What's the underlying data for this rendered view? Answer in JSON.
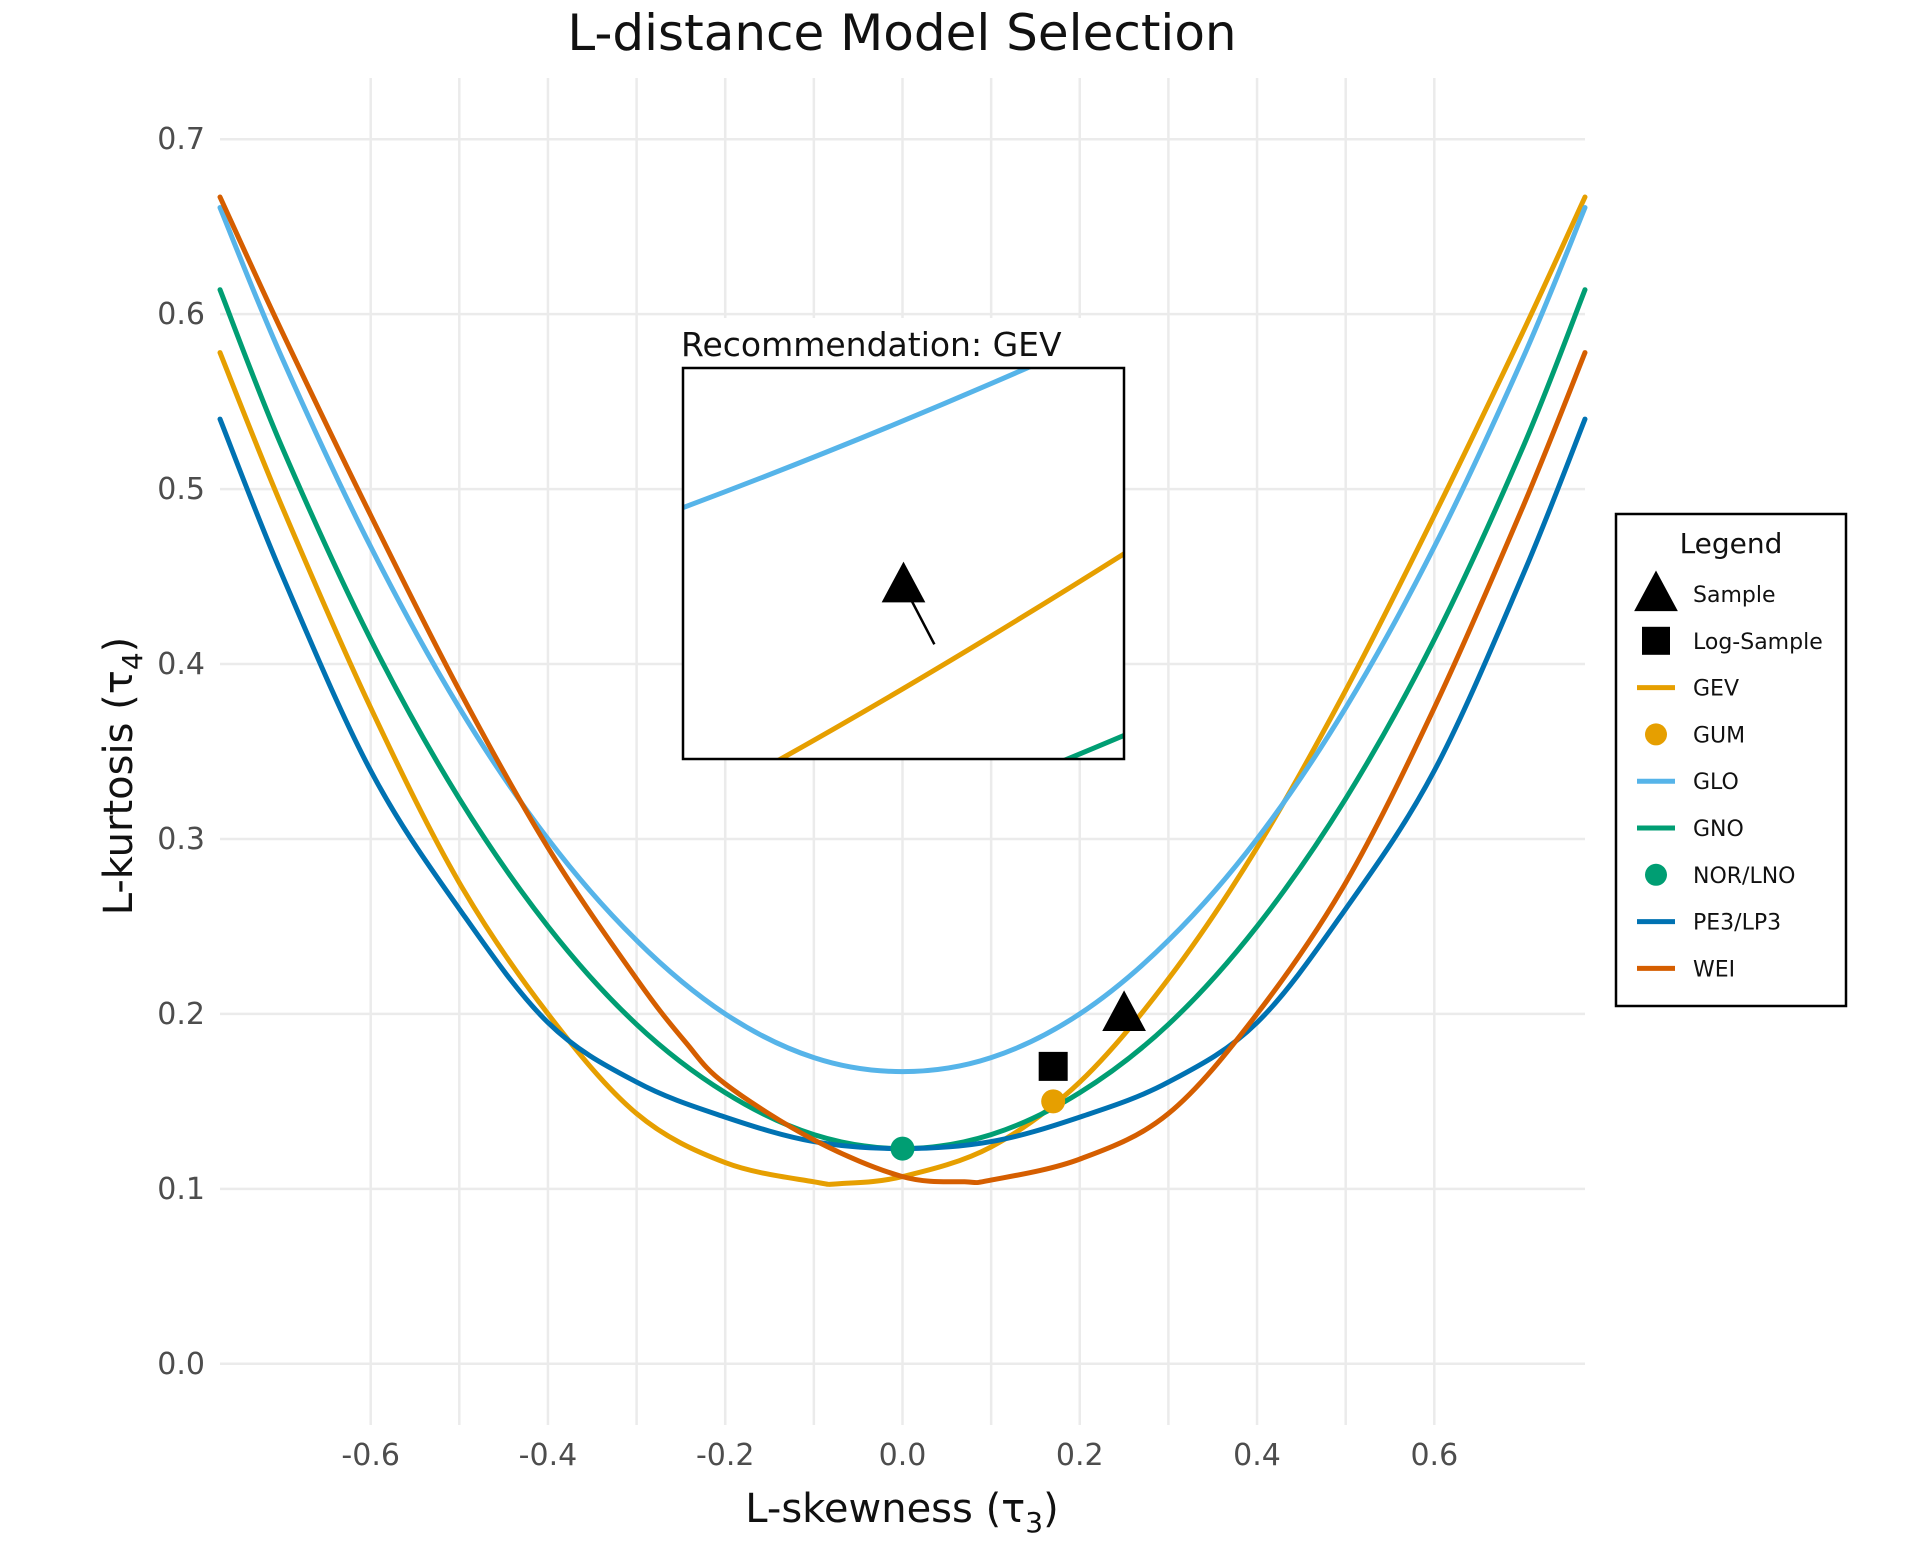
{
  "chart_data": {
    "type": "line",
    "title": "L-distance Model Selection",
    "xlabel": "L-skewness (τ₃)",
    "ylabel": "L-kurtosis (τ₄)",
    "xlabel_main": "L-skewness (τ",
    "xlabel_sub": "3",
    "ylabel_main": "L-kurtosis (τ",
    "ylabel_sub": "4",
    "label_close": ")",
    "xlim": [
      -0.77,
      0.77
    ],
    "ylim": [
      -0.035,
      0.735
    ],
    "x_ticks": [
      -0.6,
      -0.4,
      -0.2,
      0.0,
      0.2,
      0.4,
      0.6
    ],
    "x_tick_labels": [
      "-0.6",
      "-0.4",
      "-0.2",
      "0.0",
      "0.2",
      "0.4",
      "0.6"
    ],
    "y_ticks": [
      0.0,
      0.1,
      0.2,
      0.3,
      0.4,
      0.5,
      0.6,
      0.7
    ],
    "y_tick_labels": [
      "0.0",
      "0.1",
      "0.2",
      "0.3",
      "0.4",
      "0.5",
      "0.6",
      "0.7"
    ],
    "grid": true,
    "legend_position": "right",
    "legend": {
      "title": "Legend",
      "entries": [
        {
          "label": "Sample",
          "kind": "triangle",
          "color": "#000000"
        },
        {
          "label": "Log-Sample",
          "kind": "square",
          "color": "#000000"
        },
        {
          "label": "GEV",
          "kind": "line",
          "color": "#E69F00"
        },
        {
          "label": "GUM",
          "kind": "point",
          "color": "#E69F00"
        },
        {
          "label": "GLO",
          "kind": "line",
          "color": "#56B4E9"
        },
        {
          "label": "GNO",
          "kind": "line",
          "color": "#009E73"
        },
        {
          "label": "NOR/LNO",
          "kind": "point",
          "color": "#009E73"
        },
        {
          "label": "PE3/LP3",
          "kind": "line",
          "color": "#0072B2"
        },
        {
          "label": "WEI",
          "kind": "line",
          "color": "#D55E00"
        }
      ]
    },
    "series": [
      {
        "name": "GEV",
        "color": "#E69F00",
        "x": [
          -0.77,
          -0.7,
          -0.6,
          -0.5,
          -0.4,
          -0.3,
          -0.2,
          -0.1,
          -0.07,
          0.0,
          0.1,
          0.2,
          0.3,
          0.4,
          0.5,
          0.6,
          0.7,
          0.77
        ],
        "y": [
          0.578,
          0.49,
          0.375,
          0.275,
          0.2,
          0.143,
          0.115,
          0.104,
          0.103,
          0.107,
          0.124,
          0.161,
          0.22,
          0.295,
          0.385,
          0.485,
          0.59,
          0.667
        ]
      },
      {
        "name": "GLO",
        "color": "#56B4E9",
        "x": [
          -0.77,
          -0.7,
          -0.6,
          -0.5,
          -0.4,
          -0.3,
          -0.2,
          -0.1,
          0.0,
          0.1,
          0.2,
          0.3,
          0.4,
          0.5,
          0.6,
          0.7,
          0.77
        ],
        "y": [
          0.661,
          0.575,
          0.467,
          0.375,
          0.3,
          0.242,
          0.2,
          0.175,
          0.167,
          0.175,
          0.2,
          0.242,
          0.3,
          0.375,
          0.467,
          0.575,
          0.661
        ]
      },
      {
        "name": "GNO",
        "color": "#009E73",
        "x": [
          -0.77,
          -0.7,
          -0.6,
          -0.5,
          -0.4,
          -0.3,
          -0.2,
          -0.1,
          0.0,
          0.1,
          0.2,
          0.3,
          0.4,
          0.5,
          0.6,
          0.7,
          0.77
        ],
        "y": [
          0.614,
          0.524,
          0.414,
          0.323,
          0.25,
          0.194,
          0.155,
          0.131,
          0.123,
          0.131,
          0.155,
          0.194,
          0.25,
          0.323,
          0.414,
          0.524,
          0.614
        ]
      },
      {
        "name": "PE3/LP3",
        "color": "#0072B2",
        "x": [
          -0.77,
          -0.7,
          -0.6,
          -0.5,
          -0.4,
          -0.3,
          -0.2,
          -0.1,
          0.0,
          0.1,
          0.2,
          0.3,
          0.4,
          0.5,
          0.6,
          0.7,
          0.77
        ],
        "y": [
          0.54,
          0.451,
          0.339,
          0.26,
          0.195,
          0.161,
          0.141,
          0.127,
          0.123,
          0.127,
          0.141,
          0.161,
          0.195,
          0.26,
          0.339,
          0.451,
          0.54
        ]
      },
      {
        "name": "WEI",
        "color": "#D55E00",
        "x": [
          -0.77,
          -0.7,
          -0.6,
          -0.5,
          -0.4,
          -0.3,
          -0.245,
          -0.2,
          -0.1,
          0.0,
          0.07,
          0.1,
          0.2,
          0.3,
          0.4,
          0.5,
          0.6,
          0.7,
          0.77
        ],
        "y": [
          0.667,
          0.59,
          0.485,
          0.385,
          0.295,
          0.22,
          0.184,
          0.16,
          0.128,
          0.107,
          0.104,
          0.105,
          0.117,
          0.143,
          0.2,
          0.275,
          0.375,
          0.49,
          0.578
        ]
      }
    ],
    "points": [
      {
        "name": "Sample",
        "x": 0.25,
        "y": 0.2,
        "shape": "triangle",
        "color": "#000000"
      },
      {
        "name": "Log-Sample",
        "x": 0.17,
        "y": 0.17,
        "shape": "square",
        "color": "#000000"
      },
      {
        "name": "GUM",
        "x": 0.17,
        "y": 0.15,
        "shape": "circle",
        "color": "#E69F00"
      },
      {
        "name": "NOR/LNO",
        "x": 0.0,
        "y": 0.123,
        "shape": "circle",
        "color": "#009E73"
      }
    ],
    "inset": {
      "title": "Recommendation: GEV",
      "xlim": [
        0.225,
        0.275
      ],
      "ylim": [
        0.18,
        0.225
      ],
      "sample": {
        "x": 0.25,
        "y": 0.2
      },
      "nearest": {
        "x": 0.2535,
        "y": 0.1932
      }
    }
  }
}
